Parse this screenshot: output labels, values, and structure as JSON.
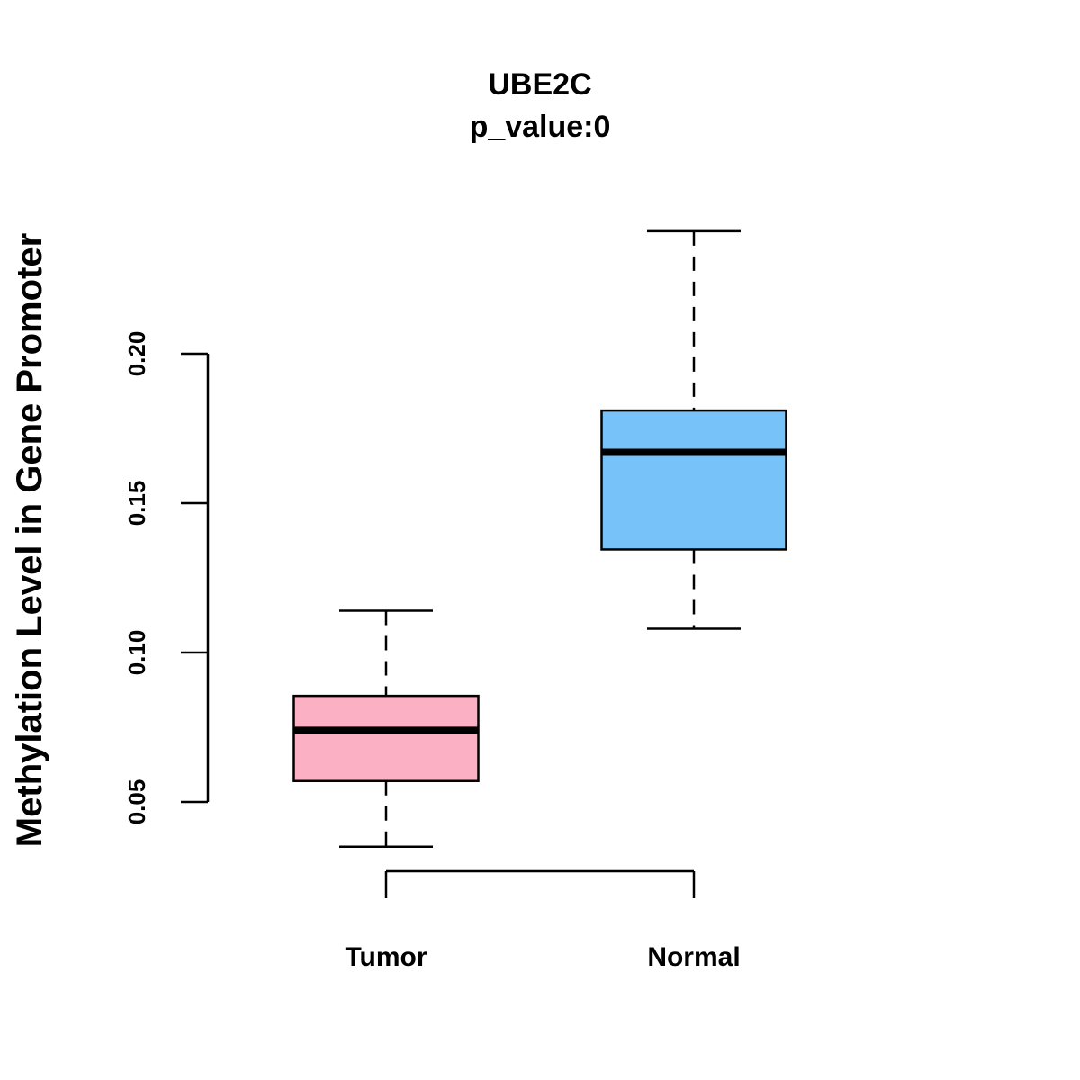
{
  "chart_data": {
    "type": "boxplot",
    "title": "UBE2C",
    "subtitle": "p_value:0",
    "xlabel": "",
    "ylabel": "Methylation Level in Gene Promoter",
    "ylim": [
      0.0268,
      0.249
    ],
    "yticks": [
      0.05,
      0.1,
      0.15,
      0.2
    ],
    "ytick_labels": [
      "0.05",
      "0.10",
      "0.15",
      "0.20"
    ],
    "grid": false,
    "categories": [
      "Tumor",
      "Normal"
    ],
    "boxes": [
      {
        "name": "Tumor",
        "whisker_low": 0.035,
        "q1": 0.057,
        "median": 0.074,
        "q3": 0.0855,
        "whisker_high": 0.114,
        "color": "#FBB0C3"
      },
      {
        "name": "Normal",
        "whisker_low": 0.108,
        "q1": 0.1345,
        "median": 0.167,
        "q3": 0.181,
        "whisker_high": 0.241,
        "color": "#77C2F8"
      }
    ]
  }
}
